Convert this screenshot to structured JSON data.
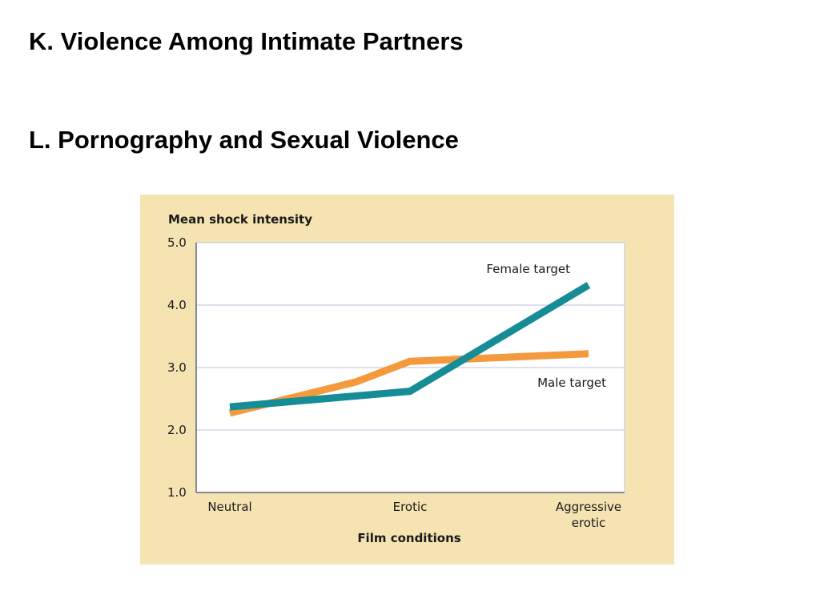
{
  "slide": {
    "heading_k": "K. Violence Among Intimate Partners",
    "heading_l": "L. Pornography and Sexual Violence"
  },
  "colors": {
    "panel_background": "#f5e3b2",
    "plot_background": "#ffffff",
    "gridline": "#c9cde0",
    "axis": "#5c6a7a",
    "female_series": "#158c96",
    "male_series": "#f39a3d"
  },
  "chart_data": {
    "type": "line",
    "title": "",
    "ylabel": "Mean shock intensity",
    "xlabel": "Film conditions",
    "ylim": [
      1.0,
      5.0
    ],
    "yticks": [
      "1.0",
      "2.0",
      "3.0",
      "4.0",
      "5.0"
    ],
    "categories": [
      [
        "Neutral"
      ],
      [
        "Erotic"
      ],
      [
        "Aggressive",
        "erotic"
      ]
    ],
    "grid": true,
    "series": [
      {
        "name": "Female target",
        "color": "#158c96",
        "x": [
          0,
          1,
          2
        ],
        "y": [
          2.37,
          2.62,
          4.32
        ]
      },
      {
        "name": "Male target",
        "color": "#f39a3d",
        "x": [
          0,
          0.7,
          1,
          2
        ],
        "y": [
          2.27,
          2.77,
          3.1,
          3.22
        ]
      }
    ]
  }
}
